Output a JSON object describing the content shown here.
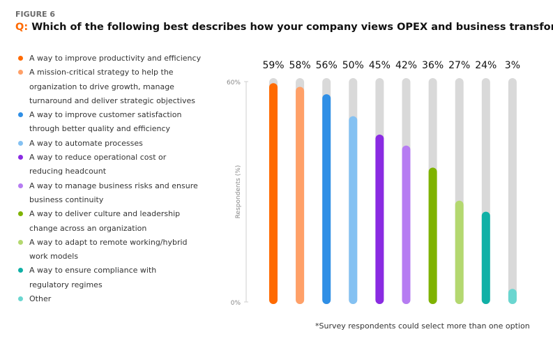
{
  "figure_label": "FIGURE 6",
  "question_prefix": "Q:",
  "question": "Which of the following best describes how your company views OPEX and business transformation?*",
  "footnote": "*Survey respondents could select more than one option",
  "chart_data": {
    "type": "bar",
    "orientation": "vertical",
    "ylabel": "Respondents (%)",
    "ylim": [
      0,
      60
    ],
    "yticks": [
      "0%",
      "60%"
    ],
    "track_color": "#d9d9d9",
    "grid": false,
    "legend_placement": "left",
    "categories": [
      "A way to improve productivity and efficiency",
      "A mission-critical strategy to help the organization to drive growth, manage turnaround and deliver strategic objectives",
      "A way to improve customer satisfaction through better quality and efficiency",
      "A way to automate processes",
      "A way to reduce operational cost or reducing headcount",
      "A way to manage business risks and ensure business continuity",
      "A way to deliver culture and leadership change across an organization",
      "A way to adapt to remote working/hybrid work models",
      "A way to ensure compliance with regulatory regimes",
      "Other"
    ],
    "values": [
      59,
      58,
      56,
      50,
      45,
      42,
      36,
      27,
      24,
      3
    ],
    "labels": [
      "59%",
      "58%",
      "56%",
      "50%",
      "45%",
      "42%",
      "36%",
      "27%",
      "24%",
      "3%"
    ],
    "colors": [
      "#ff6a00",
      "#ffa068",
      "#2f8fe6",
      "#84c1f2",
      "#8a2be2",
      "#b67cf2",
      "#7fb300",
      "#b4d870",
      "#10b0a6",
      "#6ad6d0"
    ]
  }
}
